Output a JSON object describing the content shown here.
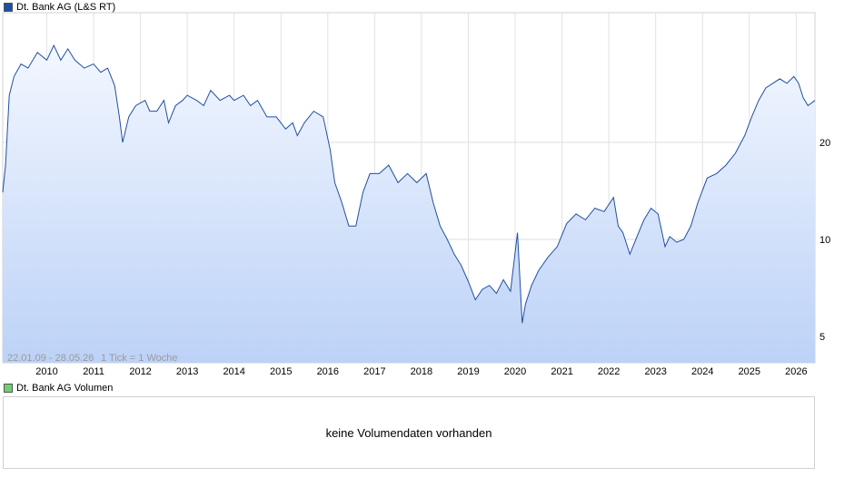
{
  "legend": {
    "price_label": "Dt. Bank AG (L&S RT)",
    "price_color": "#1f4fa3",
    "volume_label": "Dt. Bank AG Volumen",
    "volume_color": "#6fcf6f"
  },
  "chart_info": {
    "range": "22.01.09 - 28.05.26",
    "tick": "1 Tick = 1 Woche"
  },
  "volume": {
    "message": "keine Volumendaten vorhanden"
  },
  "chart_data": {
    "type": "area",
    "scale": "log",
    "line_color": "#1f4fa3",
    "fill_top": "#f3f7ff",
    "fill_bottom": "#bcd2f7",
    "grid": true,
    "y_ticks": [
      5,
      10,
      20
    ],
    "x_tick_labels": [
      "2010",
      "2011",
      "2012",
      "2013",
      "2014",
      "2015",
      "2016",
      "2017",
      "2018",
      "2019",
      "2020",
      "2021",
      "2022",
      "2023",
      "2024",
      "2025",
      "2026"
    ],
    "x": [
      2009.06,
      2009.12,
      2009.2,
      2009.3,
      2009.45,
      2009.6,
      2009.8,
      2010.0,
      2010.15,
      2010.3,
      2010.45,
      2010.6,
      2010.8,
      2011.0,
      2011.15,
      2011.3,
      2011.45,
      2011.55,
      2011.62,
      2011.75,
      2011.9,
      2012.1,
      2012.2,
      2012.35,
      2012.5,
      2012.6,
      2012.75,
      2012.9,
      2013.0,
      2013.2,
      2013.35,
      2013.5,
      2013.7,
      2013.9,
      2014.0,
      2014.2,
      2014.35,
      2014.5,
      2014.7,
      2014.9,
      2015.1,
      2015.25,
      2015.35,
      2015.5,
      2015.7,
      2015.9,
      2016.05,
      2016.15,
      2016.3,
      2016.45,
      2016.6,
      2016.75,
      2016.9,
      2017.1,
      2017.3,
      2017.5,
      2017.7,
      2017.9,
      2018.1,
      2018.25,
      2018.4,
      2018.55,
      2018.7,
      2018.85,
      2019.0,
      2019.15,
      2019.3,
      2019.45,
      2019.6,
      2019.75,
      2019.9,
      2020.05,
      2020.15,
      2020.22,
      2020.35,
      2020.5,
      2020.7,
      2020.9,
      2021.1,
      2021.3,
      2021.5,
      2021.7,
      2021.9,
      2022.1,
      2022.2,
      2022.3,
      2022.45,
      2022.6,
      2022.75,
      2022.9,
      2023.05,
      2023.2,
      2023.3,
      2023.45,
      2023.6,
      2023.75,
      2023.9,
      2024.1,
      2024.3,
      2024.5,
      2024.7,
      2024.9,
      2025.05,
      2025.2,
      2025.35,
      2025.5,
      2025.65,
      2025.8,
      2025.95,
      2026.05,
      2026.15,
      2026.25,
      2026.4
    ],
    "y": [
      14,
      17,
      28,
      32,
      35,
      34,
      38,
      36,
      40,
      36,
      39,
      36,
      34,
      35,
      33,
      34,
      30,
      24,
      20,
      24,
      26,
      27,
      25,
      25,
      27,
      23,
      26,
      27,
      28,
      27,
      26,
      29,
      27,
      28,
      27,
      28,
      26,
      27,
      24,
      24,
      22,
      23,
      21,
      23,
      25,
      24,
      19,
      15,
      13,
      11,
      11,
      14,
      16,
      16,
      17,
      15,
      16,
      15,
      16,
      13,
      11,
      10,
      9,
      8.3,
      7.4,
      6.5,
      7.0,
      7.2,
      6.8,
      7.5,
      6.9,
      10.5,
      5.5,
      6.3,
      7.2,
      8.0,
      8.8,
      9.5,
      11.2,
      12.0,
      11.5,
      12.5,
      12.2,
      13.5,
      11.0,
      10.5,
      9.0,
      10.2,
      11.5,
      12.5,
      12.0,
      9.5,
      10.2,
      9.8,
      10.0,
      11.0,
      13.0,
      15.5,
      16.0,
      17.0,
      18.5,
      21.0,
      24.0,
      27.0,
      29.5,
      30.5,
      31.5,
      30.5,
      32.0,
      30.5,
      27.5,
      26.0,
      27.0
    ]
  }
}
